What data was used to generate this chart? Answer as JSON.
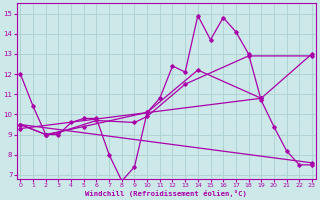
{
  "xlabel": "Windchill (Refroidissement éolien,°C)",
  "background_color": "#cce8e8",
  "grid_color": "#b0d4d4",
  "line_color": "#aa00aa",
  "x_ticks": [
    0,
    1,
    2,
    3,
    4,
    5,
    6,
    7,
    8,
    9,
    10,
    11,
    12,
    13,
    14,
    15,
    16,
    17,
    18,
    19,
    20,
    21,
    22,
    23
  ],
  "y_ticks": [
    7,
    8,
    9,
    10,
    11,
    12,
    13,
    14,
    15
  ],
  "ylim": [
    6.8,
    15.5
  ],
  "xlim": [
    -0.3,
    23.3
  ],
  "main_series": [
    12.0,
    10.4,
    9.0,
    9.0,
    9.6,
    9.8,
    9.8,
    8.0,
    6.7,
    7.4,
    10.1,
    10.8,
    12.4,
    12.1,
    14.9,
    13.7,
    14.8,
    14.1,
    13.0,
    10.7,
    9.4,
    8.2,
    7.5,
    7.5
  ],
  "trend_up": {
    "x": [
      0,
      19
    ],
    "y": [
      9.3,
      10.8
    ]
  },
  "trend_down": {
    "x": [
      0,
      23
    ],
    "y": [
      9.5,
      7.6
    ]
  },
  "smooth_up": {
    "x": [
      0,
      2,
      5,
      10,
      14,
      19,
      23
    ],
    "y": [
      9.5,
      9.0,
      9.4,
      10.1,
      12.2,
      10.8,
      13.0
    ]
  },
  "smooth_mid": {
    "x": [
      0,
      2,
      3,
      6,
      9,
      10,
      13,
      18,
      23
    ],
    "y": [
      9.5,
      9.0,
      9.1,
      9.7,
      9.6,
      9.9,
      11.5,
      12.9,
      12.9
    ]
  }
}
